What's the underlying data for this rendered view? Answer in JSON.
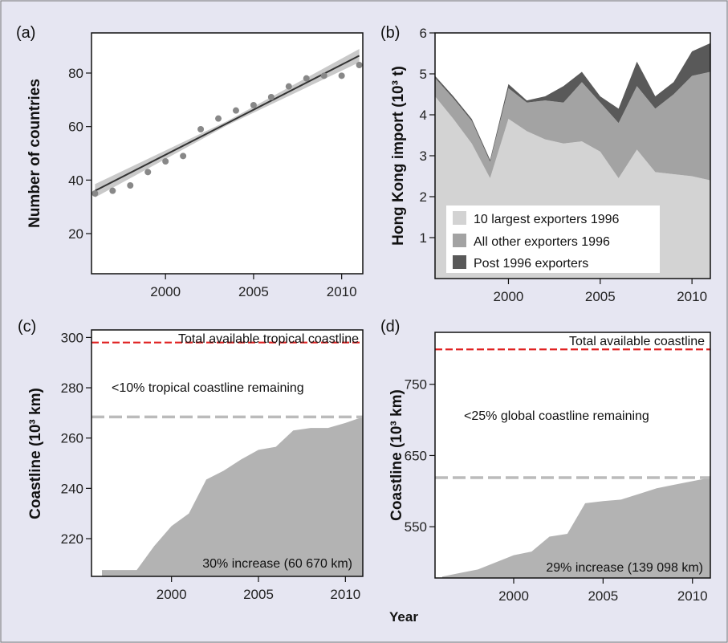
{
  "panels": {
    "a": "(a)",
    "b": "(b)",
    "c": "(c)",
    "d": "(d)"
  },
  "xlabel": "Year",
  "chart_data": [
    {
      "type": "scatter",
      "ylabel": "Number of countries",
      "xlim": [
        1995.8,
        2011.2
      ],
      "ylim": [
        5,
        95
      ],
      "xticks": [
        2000,
        2005,
        2010
      ],
      "yticks": [
        20,
        40,
        60,
        80
      ],
      "x": [
        1996,
        1997,
        1998,
        1999,
        2000,
        2001,
        2002,
        2003,
        2004,
        2005,
        2006,
        2007,
        2008,
        2009,
        2010,
        2011
      ],
      "y": [
        35,
        36,
        38,
        43,
        47,
        49,
        59,
        63,
        66,
        68,
        71,
        75,
        78,
        79,
        79,
        83
      ],
      "trend": {
        "x": [
          1996,
          2011
        ],
        "y": [
          36,
          86.5
        ]
      },
      "colors": {
        "points": "#888888",
        "line": "#333333",
        "band": "#c9c9c9"
      }
    },
    {
      "type": "area",
      "ylabel": "Hong Kong import (10³ t)",
      "xlim": [
        1996,
        2011
      ],
      "ylim": [
        0,
        6
      ],
      "xticks": [
        2000,
        2005,
        2010
      ],
      "yticks": [
        1,
        2,
        3,
        4,
        5,
        6
      ],
      "x": [
        1996,
        1997,
        1998,
        1999,
        2000,
        2001,
        2002,
        2003,
        2004,
        2005,
        2006,
        2007,
        2008,
        2009,
        2010,
        2011
      ],
      "legend": [
        "10 largest exporters 1996",
        "All other exporters 1996",
        "Post 1996 exporters"
      ],
      "series": [
        {
          "name": "10 largest exporters 1996",
          "color": "#d3d3d3",
          "values": [
            4.45,
            3.9,
            3.3,
            2.45,
            3.9,
            3.6,
            3.4,
            3.3,
            3.35,
            3.1,
            2.45,
            3.15,
            2.6,
            2.55,
            2.5,
            2.4
          ]
        },
        {
          "name": "All other exporters 1996",
          "color": "#a3a3a3",
          "values": [
            0.45,
            0.5,
            0.55,
            0.4,
            0.75,
            0.7,
            0.95,
            1.0,
            1.45,
            1.2,
            1.35,
            1.55,
            1.55,
            1.95,
            2.45,
            2.65
          ]
        },
        {
          "name": "Post 1996 exporters",
          "color": "#595959",
          "values": [
            0.05,
            0.05,
            0.05,
            0.05,
            0.1,
            0.05,
            0.1,
            0.4,
            0.25,
            0.15,
            0.35,
            0.6,
            0.3,
            0.3,
            0.6,
            0.7
          ]
        }
      ]
    },
    {
      "type": "area",
      "ylabel": "Coastline (10³ km)",
      "xlim": [
        1995.4,
        2011
      ],
      "ylim": [
        205,
        303
      ],
      "xticks": [
        2000,
        2005,
        2010
      ],
      "yticks": [
        220,
        240,
        260,
        280,
        300
      ],
      "x": [
        1996,
        1997,
        1998,
        1999,
        2000,
        2001,
        2002,
        2003,
        2004,
        2005,
        2006,
        2007,
        2008,
        2009,
        2010,
        2011
      ],
      "values": [
        207.5,
        207.5,
        207.5,
        217,
        225,
        230,
        243.5,
        247,
        251.5,
        255.3,
        256.5,
        263,
        264,
        264,
        266,
        268.4
      ],
      "reference_lines": [
        {
          "value": 298,
          "color": "#e02020",
          "style": "dashed"
        },
        {
          "value": 268.4,
          "color": "#bbbbbb",
          "style": "dashed"
        }
      ],
      "annotations": [
        "Total available tropical coastline",
        "<10% tropical coastline remaining",
        "30% increase (60 670 km)"
      ],
      "colors": {
        "fill": "#b3b3b3"
      }
    },
    {
      "type": "area",
      "ylabel": "Coastline (10³ km)",
      "xlim": [
        1995.6,
        2011
      ],
      "ylim": [
        478,
        823
      ],
      "xticks": [
        2000,
        2005,
        2010
      ],
      "yticks": [
        550,
        650,
        750
      ],
      "x": [
        1996,
        1997,
        1998,
        1999,
        2000,
        2001,
        2002,
        2003,
        2004,
        2005,
        2006,
        2007,
        2008,
        2009,
        2010,
        2011
      ],
      "values": [
        480,
        485,
        490,
        500,
        510,
        515,
        536,
        540,
        583,
        586,
        588,
        596,
        604,
        609,
        614,
        619
      ],
      "reference_lines": [
        {
          "value": 799,
          "color": "#e02020",
          "style": "dashed"
        },
        {
          "value": 619,
          "color": "#bbbbbb",
          "style": "dashed"
        }
      ],
      "annotations": [
        "Total available coastline",
        "<25% global coastline remaining",
        "29% increase (139 098 km)"
      ],
      "colors": {
        "fill": "#b3b3b3"
      }
    }
  ]
}
